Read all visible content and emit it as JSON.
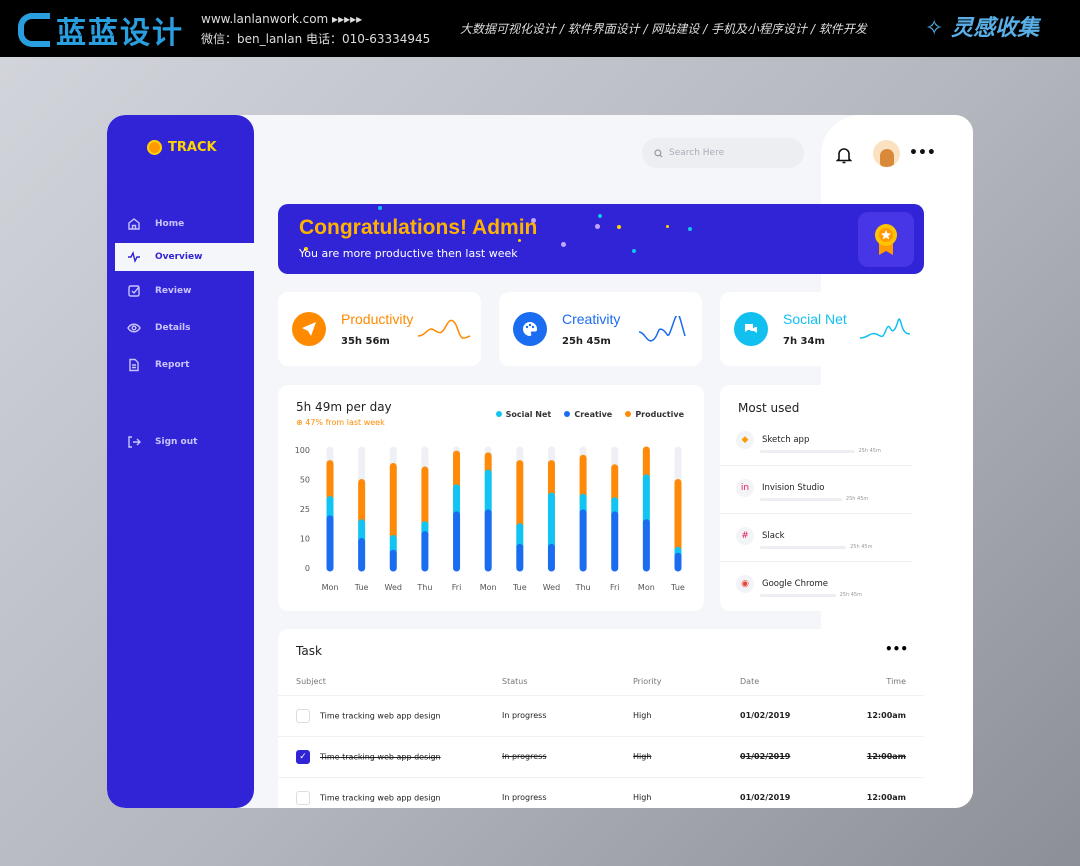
{
  "topbar": {
    "brand": "蓝蓝设计",
    "website": "www.lanlanwork.com ▸▸▸▸▸",
    "contact": "微信：ben_lanlan    电话：010-63334945",
    "services": "大数据可视化设计  /  软件界面设计  /  网站建设  /  手机及小程序设计  /  软件开发",
    "collect": "灵感收集"
  },
  "sidebar": {
    "logo": "TRACK",
    "items": [
      {
        "label": "Home",
        "icon": "home-icon"
      },
      {
        "label": "Overview",
        "icon": "activity-icon",
        "active": true
      },
      {
        "label": "Review",
        "icon": "checkbox-icon"
      },
      {
        "label": "Details",
        "icon": "eye-icon"
      },
      {
        "label": "Report",
        "icon": "document-icon"
      }
    ],
    "signout": "Sign out"
  },
  "header": {
    "search_placeholder": "Search Here"
  },
  "banner": {
    "title": "Congratulations! Admin",
    "subtitle": "You are more productive then last week"
  },
  "stats": [
    {
      "label": "Productivity",
      "value": "35h 56m",
      "color": "#ff8a00"
    },
    {
      "label": "Creativity",
      "value": "25h 45m",
      "color": "#1a6cf0"
    },
    {
      "label": "Social Net",
      "value": "7h 34m",
      "color": "#12c0f0"
    }
  ],
  "chart_data": {
    "type": "bar",
    "stacked": true,
    "title": "5h 49m per day",
    "subtitle": "47% from last week",
    "legend_position": "top-right",
    "categories": [
      "Mon",
      "Tue",
      "Wed",
      "Thu",
      "Fri",
      "Mon",
      "Tue",
      "Wed",
      "Thu",
      "Fri",
      "Mon",
      "Tue"
    ],
    "yticks": [
      0,
      10,
      25,
      50,
      100
    ],
    "ylim": [
      0,
      100
    ],
    "series": [
      {
        "name": "Creative",
        "color": "#1a6cf0",
        "values": [
          20,
          9,
          5,
          12,
          22,
          23,
          7,
          7,
          23,
          22,
          18,
          4
        ]
      },
      {
        "name": "Social Net",
        "color": "#12c4f2",
        "values": [
          13,
          9,
          5,
          5,
          21,
          38,
          9,
          29,
          12,
          10,
          35,
          2
        ]
      },
      {
        "name": "Productive",
        "color": "#ff8a0a",
        "values": [
          44,
          29.5,
          62,
          49,
          50,
          29,
          61,
          41,
          51,
          38,
          47,
          41.5
        ]
      }
    ]
  },
  "most_used": {
    "title": "Most used",
    "apps": [
      {
        "name": "Sketch app",
        "time": "25h 45m",
        "fraction": 0.9
      },
      {
        "name": "Invision Studio",
        "time": "25h 45m",
        "fraction": 0.78
      },
      {
        "name": "Slack",
        "time": "25h 45m",
        "fraction": 0.82
      },
      {
        "name": "Google Chrome",
        "time": "25h 45m",
        "fraction": 0.72
      }
    ]
  },
  "task": {
    "title": "Task",
    "columns": [
      "Subject",
      "Status",
      "Priority",
      "Date",
      "Time"
    ],
    "rows": [
      {
        "subject": "Time tracking web app design",
        "status": "In progress",
        "priority": "High",
        "date": "01/02/2019",
        "time": "12:00am",
        "done": false
      },
      {
        "subject": "Time tracking web app design",
        "status": "In progress",
        "priority": "High",
        "date": "01/02/2019",
        "time": "12:00am",
        "done": true
      },
      {
        "subject": "Time tracking web app design",
        "status": "In progress",
        "priority": "High",
        "date": "01/02/2019",
        "time": "12:00am",
        "done": false
      }
    ]
  }
}
